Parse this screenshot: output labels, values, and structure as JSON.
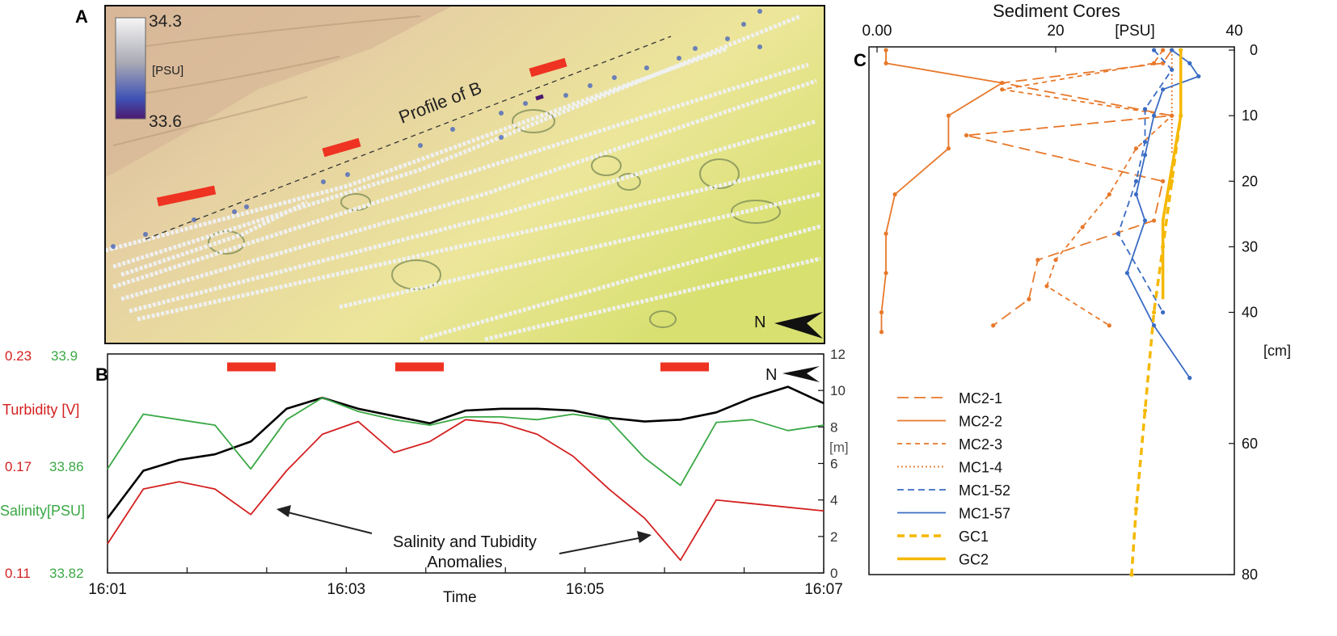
{
  "panel_letters": {
    "a": "A",
    "b": "B",
    "c": "C"
  },
  "colors": {
    "turbidity": "#d42020",
    "salinity": "#3aa845",
    "depth": "#000000",
    "highlight_bar": "#ee3322",
    "mc2": "#e8782a",
    "mc1": "#3a6cc4",
    "gc": "#f5b800"
  },
  "panel_a": {
    "colorbar_max": "34.3",
    "colorbar_min": "33.6",
    "colorbar_unit": "[PSU]",
    "profile_label": "Profile of B",
    "north_label": "N"
  },
  "chart_data": [
    {
      "type": "line",
      "panel": "B",
      "xlabel": "Time",
      "x_ticks": [
        "16:01",
        "16:03",
        "16:05",
        "16:07"
      ],
      "y_left_turbidity": {
        "label": "Turbidity",
        "unit": "[V]",
        "ticks": [
          "0.23",
          "0.17",
          "0.11"
        ],
        "range": [
          0.11,
          0.23
        ]
      },
      "y_left_salinity": {
        "label": "Salinity",
        "unit": "[PSU]",
        "ticks": [
          "33.9",
          "33.86",
          "33.82"
        ],
        "range": [
          33.82,
          33.9
        ]
      },
      "y_right_depth": {
        "unit": "[m]",
        "ticks": [
          "0",
          "2",
          "4",
          "6",
          "8",
          "10",
          "12"
        ],
        "range": [
          0,
          12
        ]
      },
      "annotation": "Salinity and Tubidity\nAnomalies",
      "annotation_line1": "Salinity and Tubidity",
      "annotation_line2": "Anomalies",
      "north_label": "N",
      "series": [
        {
          "name": "Depth [m]",
          "values": [
            3.0,
            5.6,
            6.2,
            6.5,
            7.2,
            9.0,
            9.6,
            9.0,
            8.6,
            8.2,
            8.9,
            9.0,
            9.0,
            8.9,
            8.5,
            8.3,
            8.4,
            8.8,
            9.6,
            10.2,
            9.3
          ]
        },
        {
          "name": "Salinity [PSU]",
          "values": [
            33.858,
            33.878,
            33.876,
            33.874,
            33.858,
            33.876,
            33.884,
            33.879,
            33.876,
            33.874,
            33.877,
            33.877,
            33.876,
            33.878,
            33.876,
            33.862,
            33.852,
            33.875,
            33.876,
            33.872,
            33.874
          ]
        },
        {
          "name": "Turbidity [V]",
          "values": [
            0.126,
            0.156,
            0.16,
            0.156,
            0.142,
            0.166,
            0.186,
            0.193,
            0.176,
            0.182,
            0.194,
            0.192,
            0.186,
            0.174,
            0.156,
            0.14,
            0.117,
            0.15,
            0.148,
            0.146,
            0.144
          ]
        }
      ]
    },
    {
      "type": "line",
      "panel": "C",
      "title": "Sediment Cores",
      "x_unit": "[PSU]",
      "x_ticks": [
        "0.00",
        "20",
        "40"
      ],
      "x_range": [
        0,
        40
      ],
      "y_unit": "[cm]",
      "y_ticks": [
        "0",
        "10",
        "20",
        "30",
        "40",
        "60",
        "80"
      ],
      "y_range": [
        0,
        80
      ],
      "series": [
        {
          "name": "MC2-1",
          "style": "long-dash",
          "points": [
            [
              33,
              0
            ],
            [
              32,
              2
            ],
            [
              14,
              5
            ],
            [
              33,
              10
            ],
            [
              10,
              13
            ],
            [
              32,
              20
            ],
            [
              31,
              26
            ],
            [
              18,
              32
            ],
            [
              17,
              38
            ],
            [
              13,
              42
            ]
          ]
        },
        {
          "name": "MC2-2",
          "style": "solid",
          "points": [
            [
              1,
              0
            ],
            [
              1,
              2
            ],
            [
              14,
              5
            ],
            [
              8,
              10
            ],
            [
              8,
              15
            ],
            [
              2,
              22
            ],
            [
              1,
              28
            ],
            [
              1,
              34
            ],
            [
              0.5,
              40
            ],
            [
              0.5,
              43
            ]
          ]
        },
        {
          "name": "MC2-3",
          "style": "short-dash",
          "points": [
            [
              32,
              0
            ],
            [
              31,
              2
            ],
            [
              14,
              6
            ],
            [
              33,
              10
            ],
            [
              29,
              15
            ],
            [
              26,
              22
            ],
            [
              23,
              27
            ],
            [
              20,
              32
            ],
            [
              19,
              36
            ],
            [
              26,
              42
            ]
          ]
        },
        {
          "name": "MC1-4",
          "style": "dotted",
          "points": [
            [
              33,
              0
            ],
            [
              33,
              6
            ],
            [
              33,
              12
            ],
            [
              33,
              16
            ]
          ]
        },
        {
          "name": "MC1-52",
          "style": "dash",
          "points": [
            [
              31,
              0
            ],
            [
              33,
              3
            ],
            [
              30,
              9
            ],
            [
              30,
              14
            ],
            [
              29,
              20
            ],
            [
              27,
              28
            ],
            [
              32,
              40
            ]
          ]
        },
        {
          "name": "MC1-57",
          "style": "solid",
          "points": [
            [
              33,
              0
            ],
            [
              35,
              2
            ],
            [
              36,
              4
            ],
            [
              32,
              6
            ],
            [
              31,
              10
            ],
            [
              30,
              16
            ],
            [
              29,
              22
            ],
            [
              30,
              26
            ],
            [
              28,
              34
            ],
            [
              31,
              42
            ],
            [
              35,
              50
            ]
          ]
        },
        {
          "name": "GC1",
          "style": "thick-dash",
          "points": [
            [
              34,
              0
            ],
            [
              34,
              10
            ],
            [
              33,
              20
            ],
            [
              32,
              30
            ],
            [
              31,
              40
            ],
            [
              30,
              55
            ],
            [
              29,
              70
            ],
            [
              28.5,
              80
            ]
          ]
        },
        {
          "name": "GC2",
          "style": "thick-solid",
          "points": [
            [
              34,
              0
            ],
            [
              34,
              10
            ],
            [
              33,
              18
            ],
            [
              32,
              26
            ],
            [
              32,
              30
            ],
            [
              32,
              38
            ]
          ]
        }
      ],
      "legend": [
        "MC2-1",
        "MC2-2",
        "MC2-3",
        "MC1-4",
        "MC1-52",
        "MC1-57",
        "GC1",
        "GC2"
      ]
    }
  ]
}
